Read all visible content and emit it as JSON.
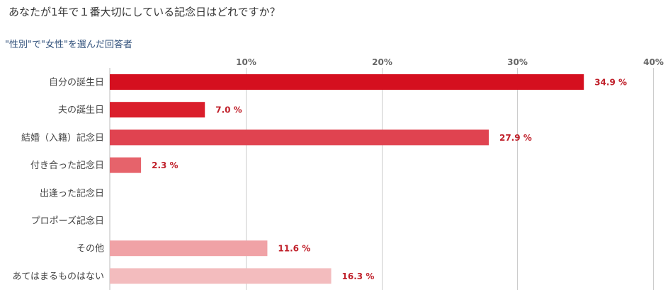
{
  "question": "あなたが1年で１番大切にしている記念日はどれですか？",
  "filter_label": "\"性別\"で\"女性\"を選んだ回答者",
  "chart_data": {
    "type": "bar",
    "orientation": "horizontal",
    "categories": [
      "自分の誕生日",
      "夫の誕生日",
      "結婚（入籍）記念日",
      "付き合った記念日",
      "出逢った記念日",
      "プロポーズ記念日",
      "その他",
      "あてはまるものはない"
    ],
    "values": [
      34.9,
      7.0,
      27.9,
      2.3,
      0,
      0,
      11.6,
      16.3
    ],
    "value_labels": [
      "34.9 %",
      "7.0 %",
      "27.9 %",
      "2.3 %",
      "",
      "",
      "11.6 %",
      "16.3 %"
    ],
    "colors": [
      "#d50f1f",
      "#da1e2b",
      "#e04350",
      "#e6636b",
      "#eb828a",
      "#ee9aa0",
      "#f0a2a6",
      "#f3bcbe"
    ],
    "xlim": [
      0,
      40
    ],
    "ticks": [
      10,
      20,
      30,
      40
    ],
    "tick_labels": [
      "10%",
      "20%",
      "30%",
      "40%"
    ],
    "grid": true,
    "value_label_color": "#c0202a"
  }
}
